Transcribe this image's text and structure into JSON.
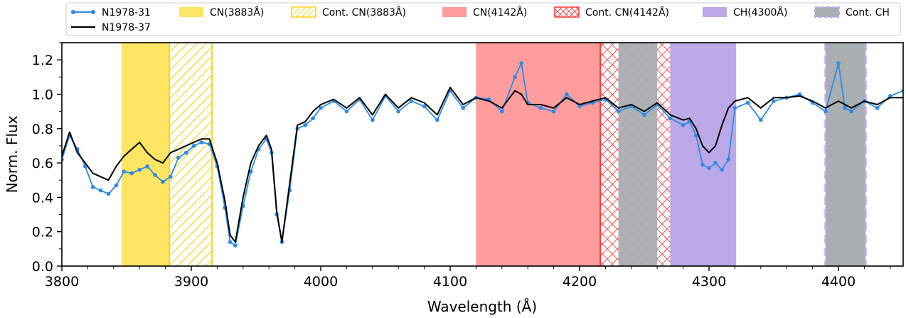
{
  "chart_data": {
    "type": "line",
    "xlabel": "Wavelength (Å)",
    "ylabel": "Norm. Flux",
    "xlim": [
      3800,
      4450
    ],
    "ylim": [
      0.0,
      1.3
    ],
    "x_ticks": [
      3800,
      3900,
      4000,
      4100,
      4200,
      4300,
      4400
    ],
    "x_tick_labels": [
      "3800",
      "3900",
      "4000",
      "4100",
      "4200",
      "4300",
      "4400"
    ],
    "y_ticks": [
      0.0,
      0.2,
      0.4,
      0.6,
      0.8,
      1.0,
      1.2
    ],
    "y_tick_labels": [
      "0.0",
      "0.2",
      "0.4",
      "0.6",
      "0.8",
      "1.0",
      "1.2"
    ],
    "grid": false,
    "legend_position": "top, above plot",
    "bands": [
      {
        "label": "CN(3883Å)",
        "x0": 3846,
        "x1": 3883,
        "style": "solid",
        "fill": "#fde563",
        "edge": "#fde563"
      },
      {
        "label": "Cont. CN(3883Å)",
        "x0": 3883,
        "x1": 3916,
        "style": "hatch-diagonal",
        "fill": "none",
        "edge": "#f5d51b"
      },
      {
        "label": "CN(4142Å)",
        "x0": 4120,
        "x1": 4216,
        "style": "solid",
        "fill": "#ff9c9c",
        "edge": "#ff9c9c"
      },
      {
        "label": "Cont. CN(4142Å)",
        "x0": 4216,
        "x1": 4290,
        "style": "hatch-cross",
        "fill": "none",
        "edge": "#ff3b3b"
      },
      {
        "label": "CH(4300Å)",
        "x0": 4270,
        "x1": 4321,
        "style": "solid",
        "fill": "#bba8e6",
        "edge": "#bba8e6"
      },
      {
        "label": "Cont. CH",
        "x0": 4230,
        "x1": 4260,
        "style": "solid-gray",
        "fill": "#a9aeb1",
        "edge": "#a9aeb1"
      },
      {
        "label": "Cont. CH",
        "x0": 4390,
        "x1": 4421,
        "style": "solid-gray-dashed",
        "fill": "#a9aeb1",
        "edge": "#c5a8ee"
      }
    ],
    "legend": [
      {
        "label": "N1978-31",
        "kind": "line-marker",
        "color": "#2b8ce6"
      },
      {
        "label": "N1978-37",
        "kind": "line",
        "color": "#000000"
      },
      {
        "label": "CN(3883Å)",
        "kind": "solid",
        "color": "#fde563"
      },
      {
        "label": "Cont. CN(3883Å)",
        "kind": "hatch-diagonal",
        "color": "#f5d51b"
      },
      {
        "label": "CN(4142Å)",
        "kind": "solid",
        "color": "#ff9c9c"
      },
      {
        "label": "Cont. CN(4142Å)",
        "kind": "hatch-cross",
        "color": "#ff3b3b"
      },
      {
        "label": "CH(4300Å)",
        "kind": "solid",
        "color": "#bba8e6"
      },
      {
        "label": "Cont. CH",
        "kind": "solid-gray-dashed",
        "color": "#a9aeb1"
      }
    ],
    "series": [
      {
        "name": "N1978-31",
        "color": "#2b8ce6",
        "marker": "circle",
        "x": [
          3800,
          3806,
          3812,
          3818,
          3824,
          3830,
          3836,
          3842,
          3848,
          3854,
          3860,
          3866,
          3872,
          3878,
          3884,
          3890,
          3896,
          3902,
          3908,
          3914,
          3920,
          3926,
          3930,
          3934,
          3940,
          3946,
          3952,
          3958,
          3962,
          3966,
          3970,
          3976,
          3982,
          3988,
          3994,
          4000,
          4010,
          4020,
          4030,
          4040,
          4050,
          4060,
          4070,
          4080,
          4090,
          4100,
          4110,
          4120,
          4130,
          4140,
          4150,
          4155,
          4160,
          4170,
          4180,
          4190,
          4200,
          4210,
          4220,
          4230,
          4240,
          4250,
          4260,
          4270,
          4280,
          4285,
          4290,
          4295,
          4300,
          4305,
          4310,
          4315,
          4320,
          4330,
          4340,
          4350,
          4360,
          4370,
          4380,
          4390,
          4400,
          4405,
          4410,
          4420,
          4430,
          4440,
          4450
        ],
        "y": [
          0.62,
          0.76,
          0.68,
          0.58,
          0.46,
          0.44,
          0.42,
          0.47,
          0.55,
          0.54,
          0.56,
          0.58,
          0.53,
          0.49,
          0.52,
          0.63,
          0.66,
          0.7,
          0.72,
          0.71,
          0.58,
          0.34,
          0.14,
          0.12,
          0.35,
          0.55,
          0.68,
          0.74,
          0.66,
          0.3,
          0.14,
          0.44,
          0.8,
          0.82,
          0.86,
          0.92,
          0.96,
          0.9,
          0.97,
          0.85,
          0.99,
          0.9,
          0.96,
          0.93,
          0.85,
          1.02,
          0.92,
          0.98,
          0.97,
          0.9,
          1.1,
          1.18,
          0.95,
          0.92,
          0.9,
          1.0,
          0.93,
          0.95,
          0.97,
          0.9,
          0.93,
          0.88,
          0.94,
          0.86,
          0.82,
          0.84,
          0.76,
          0.59,
          0.57,
          0.6,
          0.56,
          0.62,
          0.92,
          0.95,
          0.85,
          0.96,
          0.98,
          1.0,
          0.95,
          0.9,
          1.18,
          0.92,
          0.9,
          0.96,
          0.92,
          0.99,
          1.02
        ]
      },
      {
        "name": "N1978-37",
        "color": "#000000",
        "marker": "none",
        "x": [
          3800,
          3806,
          3812,
          3818,
          3824,
          3830,
          3836,
          3842,
          3848,
          3854,
          3860,
          3866,
          3872,
          3878,
          3884,
          3890,
          3896,
          3902,
          3908,
          3914,
          3920,
          3926,
          3930,
          3934,
          3940,
          3946,
          3952,
          3958,
          3962,
          3966,
          3970,
          3976,
          3982,
          3988,
          3994,
          4000,
          4010,
          4020,
          4030,
          4040,
          4050,
          4060,
          4070,
          4080,
          4090,
          4100,
          4110,
          4120,
          4130,
          4140,
          4150,
          4155,
          4160,
          4170,
          4180,
          4190,
          4200,
          4210,
          4220,
          4230,
          4240,
          4250,
          4260,
          4270,
          4280,
          4285,
          4290,
          4295,
          4300,
          4305,
          4310,
          4315,
          4320,
          4330,
          4340,
          4350,
          4360,
          4370,
          4380,
          4390,
          4400,
          4405,
          4410,
          4420,
          4430,
          4440,
          4450
        ],
        "y": [
          0.64,
          0.78,
          0.66,
          0.6,
          0.54,
          0.52,
          0.5,
          0.58,
          0.64,
          0.68,
          0.72,
          0.66,
          0.62,
          0.6,
          0.66,
          0.68,
          0.7,
          0.72,
          0.74,
          0.74,
          0.6,
          0.38,
          0.18,
          0.14,
          0.4,
          0.6,
          0.7,
          0.76,
          0.68,
          0.32,
          0.14,
          0.48,
          0.82,
          0.84,
          0.9,
          0.94,
          0.97,
          0.92,
          0.98,
          0.88,
          1.0,
          0.92,
          0.98,
          0.95,
          0.88,
          1.04,
          0.94,
          0.98,
          0.96,
          0.92,
          1.02,
          1.0,
          0.94,
          0.94,
          0.92,
          0.98,
          0.94,
          0.96,
          0.98,
          0.92,
          0.94,
          0.9,
          0.95,
          0.88,
          0.85,
          0.86,
          0.8,
          0.7,
          0.66,
          0.7,
          0.82,
          0.92,
          0.96,
          0.98,
          0.92,
          0.98,
          0.98,
          0.99,
          0.96,
          0.92,
          0.96,
          0.94,
          0.92,
          0.96,
          0.94,
          0.98,
          0.98
        ]
      }
    ]
  }
}
